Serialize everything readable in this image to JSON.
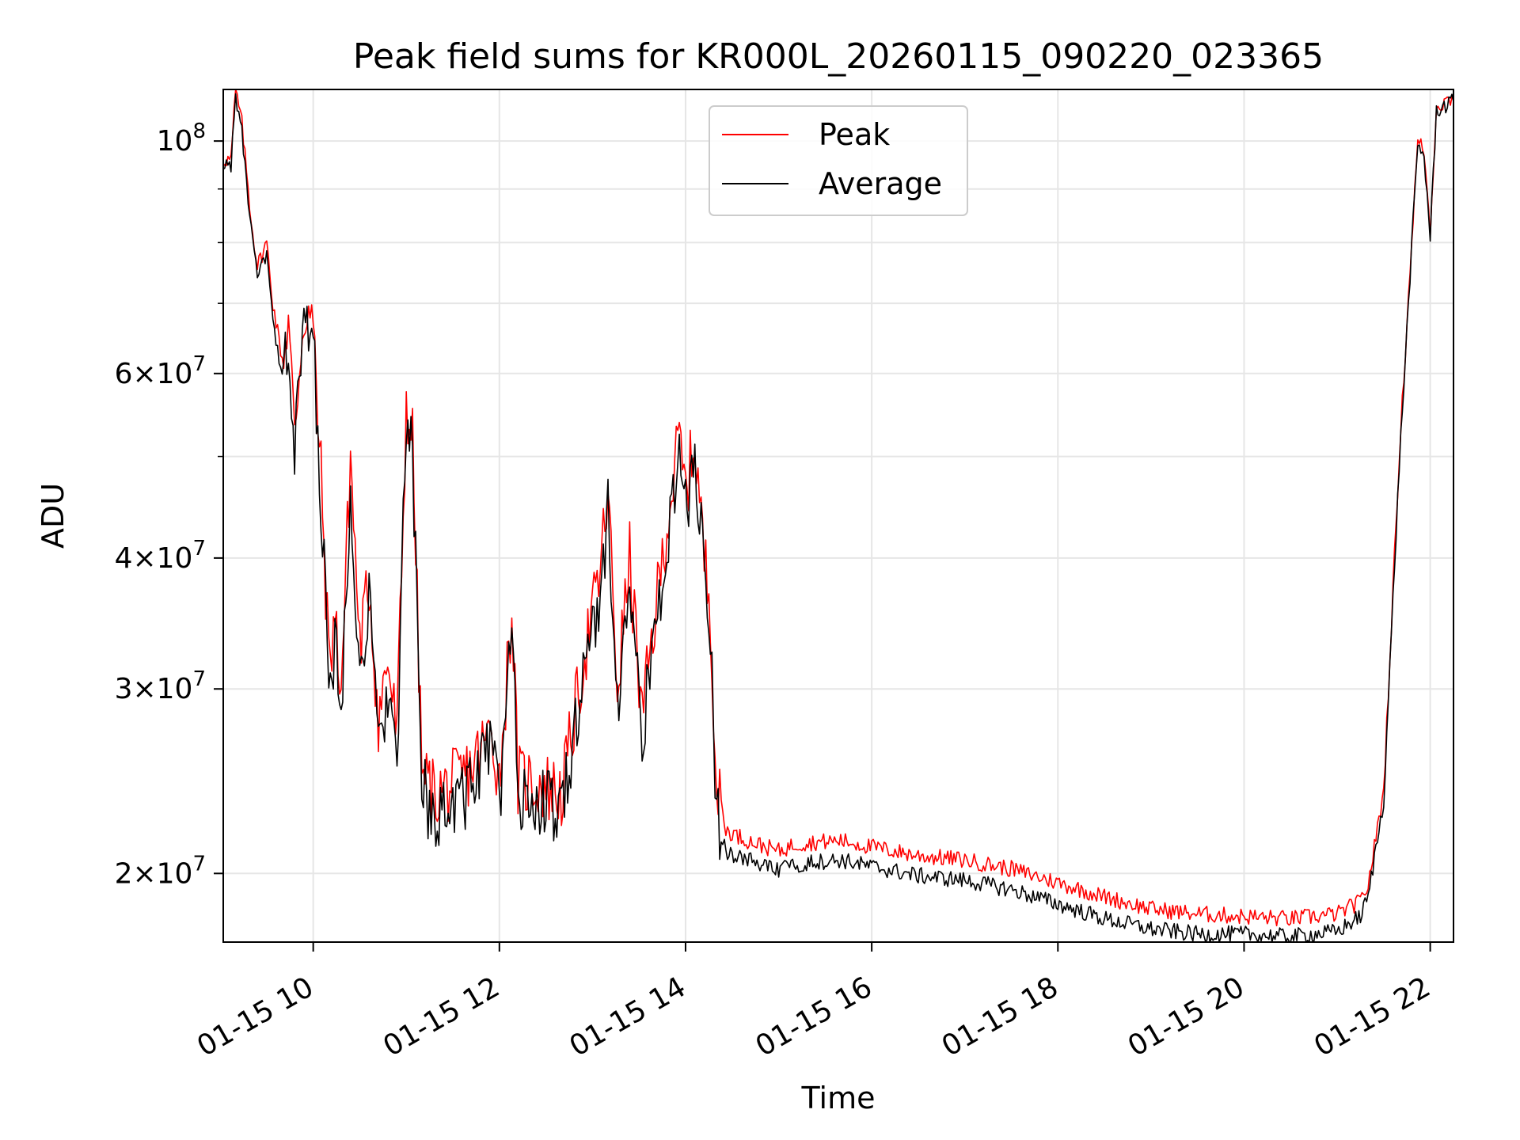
{
  "chart_data": {
    "type": "line",
    "title": "Peak field sums for KR000L_20260115_090220_023365",
    "xlabel": "Time",
    "ylabel": "ADU",
    "y_scale": "log",
    "ylim": [
      17200000,
      112000000
    ],
    "x_range": [
      "01-15 09:02",
      "01-15 22:15"
    ],
    "grid": true,
    "legend_position": "upper center",
    "x_ticks": [
      {
        "value": "01-15 10:00",
        "label": "01-15 10"
      },
      {
        "value": "01-15 12:00",
        "label": "01-15 12"
      },
      {
        "value": "01-15 14:00",
        "label": "01-15 14"
      },
      {
        "value": "01-15 16:00",
        "label": "01-15 16"
      },
      {
        "value": "01-15 18:00",
        "label": "01-15 18"
      },
      {
        "value": "01-15 20:00",
        "label": "01-15 20"
      },
      {
        "value": "01-15 22:00",
        "label": "01-15 22"
      }
    ],
    "y_major_ticks": [
      {
        "value": 20000000,
        "mantissa": "2",
        "exp": "7"
      },
      {
        "value": 30000000,
        "mantissa": "3",
        "exp": "7"
      },
      {
        "value": 40000000,
        "mantissa": "4",
        "exp": "7"
      },
      {
        "value": 60000000,
        "mantissa": "6",
        "exp": "7"
      },
      {
        "value": 100000000,
        "mantissa": "",
        "exp": "8"
      }
    ],
    "y_minor_ticks": [
      50000000,
      70000000,
      80000000,
      90000000
    ],
    "series": [
      {
        "name": "Peak",
        "color": "#ff0000",
        "x": [
          "01-15 09:02",
          "01-15 09:07",
          "01-15 09:10",
          "01-15 09:14",
          "01-15 09:20",
          "01-15 09:24",
          "01-15 09:30",
          "01-15 09:34",
          "01-15 09:40",
          "01-15 09:44",
          "01-15 09:48",
          "01-15 09:52",
          "01-15 09:56",
          "01-15 10:00",
          "01-15 10:05",
          "01-15 10:10",
          "01-15 10:14",
          "01-15 10:18",
          "01-15 10:24",
          "01-15 10:30",
          "01-15 10:36",
          "01-15 10:42",
          "01-15 10:48",
          "01-15 10:54",
          "01-15 11:00",
          "01-15 11:04",
          "01-15 11:10",
          "01-15 11:18",
          "01-15 11:30",
          "01-15 11:40",
          "01-15 11:50",
          "01-15 11:55",
          "01-15 12:00",
          "01-15 12:08",
          "01-15 12:12",
          "01-15 12:18",
          "01-15 12:30",
          "01-15 12:40",
          "01-15 12:48",
          "01-15 12:56",
          "01-15 13:04",
          "01-15 13:10",
          "01-15 13:16",
          "01-15 13:24",
          "01-15 13:32",
          "01-15 13:40",
          "01-15 13:48",
          "01-15 13:56",
          "01-15 14:00",
          "01-15 14:06",
          "01-15 14:12",
          "01-15 14:16",
          "01-15 14:20",
          "01-15 14:26",
          "01-15 14:40",
          "01-15 15:00",
          "01-15 15:10",
          "01-15 15:20",
          "01-15 15:40",
          "01-15 16:00",
          "01-15 16:30",
          "01-15 17:00",
          "01-15 17:30",
          "01-15 18:00",
          "01-15 18:30",
          "01-15 19:00",
          "01-15 19:30",
          "01-15 20:00",
          "01-15 20:30",
          "01-15 21:00",
          "01-15 21:15",
          "01-15 21:20",
          "01-15 21:30",
          "01-15 21:40",
          "01-15 21:48",
          "01-15 21:52",
          "01-15 21:56",
          "01-15 22:00",
          "01-15 22:04",
          "01-15 22:15"
        ],
        "values": [
          96000000,
          96000000,
          112000000,
          104000000,
          84000000,
          76000000,
          80000000,
          70000000,
          62000000,
          68000000,
          52000000,
          64000000,
          70000000,
          66000000,
          48000000,
          32000000,
          35000000,
          30000000,
          50000000,
          33000000,
          38000000,
          28000000,
          32000000,
          27000000,
          56000000,
          52000000,
          25000000,
          23800000,
          24300000,
          25000000,
          26500000,
          27500000,
          24500000,
          36000000,
          24500000,
          24500000,
          24200000,
          23800000,
          28000000,
          33000000,
          38000000,
          46000000,
          30000000,
          40000000,
          28000000,
          35000000,
          43000000,
          52000000,
          46000000,
          52000000,
          40000000,
          36000000,
          24000000,
          22000000,
          21500000,
          21000000,
          21300000,
          21400000,
          21500000,
          21200000,
          20800000,
          20600000,
          20200000,
          19600000,
          19000000,
          18500000,
          18300000,
          18200000,
          18100000,
          18300000,
          18800000,
          19500000,
          24000000,
          50000000,
          80000000,
          100000000,
          98000000,
          82000000,
          108000000,
          110000000
        ]
      },
      {
        "name": "Average",
        "color": "#000000",
        "x": [
          "01-15 09:02",
          "01-15 09:07",
          "01-15 09:10",
          "01-15 09:14",
          "01-15 09:20",
          "01-15 09:24",
          "01-15 09:30",
          "01-15 09:34",
          "01-15 09:40",
          "01-15 09:44",
          "01-15 09:48",
          "01-15 09:52",
          "01-15 09:56",
          "01-15 10:00",
          "01-15 10:05",
          "01-15 10:10",
          "01-15 10:14",
          "01-15 10:18",
          "01-15 10:24",
          "01-15 10:30",
          "01-15 10:36",
          "01-15 10:42",
          "01-15 10:48",
          "01-15 10:54",
          "01-15 11:00",
          "01-15 11:04",
          "01-15 11:10",
          "01-15 11:18",
          "01-15 11:30",
          "01-15 11:40",
          "01-15 11:50",
          "01-15 11:55",
          "01-15 12:00",
          "01-15 12:08",
          "01-15 12:12",
          "01-15 12:18",
          "01-15 12:30",
          "01-15 12:40",
          "01-15 12:48",
          "01-15 12:56",
          "01-15 13:04",
          "01-15 13:10",
          "01-15 13:16",
          "01-15 13:24",
          "01-15 13:32",
          "01-15 13:40",
          "01-15 13:48",
          "01-15 13:56",
          "01-15 14:00",
          "01-15 14:06",
          "01-15 14:12",
          "01-15 14:16",
          "01-15 14:20",
          "01-15 14:26",
          "01-15 14:40",
          "01-15 15:00",
          "01-15 15:10",
          "01-15 15:20",
          "01-15 15:40",
          "01-15 16:00",
          "01-15 16:30",
          "01-15 17:00",
          "01-15 17:30",
          "01-15 18:00",
          "01-15 18:30",
          "01-15 19:00",
          "01-15 19:30",
          "01-15 20:00",
          "01-15 20:30",
          "01-15 21:00",
          "01-15 21:15",
          "01-15 21:20",
          "01-15 21:30",
          "01-15 21:40",
          "01-15 21:48",
          "01-15 21:52",
          "01-15 21:56",
          "01-15 22:00",
          "01-15 22:04",
          "01-15 22:15"
        ],
        "values": [
          95000000,
          95000000,
          110000000,
          102000000,
          82000000,
          74000000,
          78000000,
          67000000,
          59000000,
          65000000,
          50000000,
          62000000,
          68000000,
          64000000,
          46000000,
          30000000,
          33000000,
          28000000,
          48000000,
          31000000,
          36000000,
          26500000,
          30000000,
          25500000,
          54000000,
          50000000,
          24000000,
          22800000,
          23300000,
          24000000,
          25500000,
          26500000,
          23500000,
          34000000,
          23500000,
          23500000,
          23300000,
          22900000,
          27000000,
          31500000,
          36500000,
          44000000,
          29000000,
          38000000,
          27000000,
          33500000,
          41000000,
          50000000,
          44000000,
          50000000,
          38500000,
          34500000,
          23000000,
          21000000,
          20600000,
          20100000,
          20400000,
          20500000,
          20600000,
          20300000,
          19900000,
          19700000,
          19300000,
          18700000,
          18100000,
          17700000,
          17500000,
          17500000,
          17400000,
          17600000,
          18200000,
          19000000,
          23500000,
          49000000,
          79000000,
          99000000,
          97000000,
          81000000,
          107000000,
          109000000
        ]
      }
    ]
  }
}
